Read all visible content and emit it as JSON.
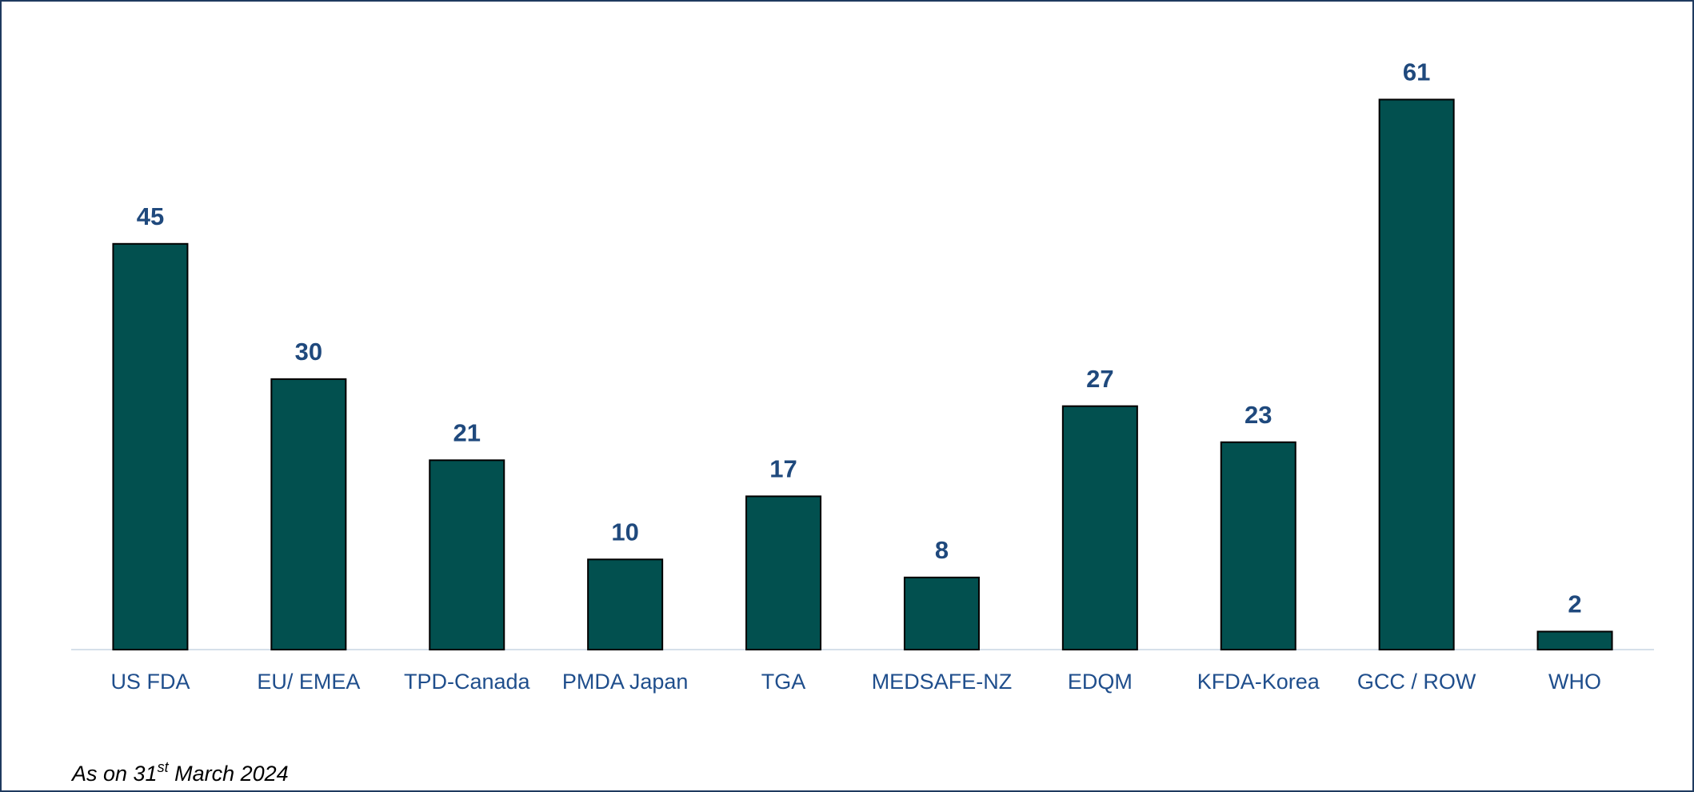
{
  "chart_data": {
    "type": "bar",
    "categories": [
      "US FDA",
      "EU/ EMEA",
      "TPD-Canada",
      "PMDA Japan",
      "TGA",
      "MEDSAFE-NZ",
      "EDQM",
      "KFDA-Korea",
      "GCC / ROW",
      "WHO"
    ],
    "values": [
      45,
      30,
      21,
      10,
      17,
      8,
      27,
      23,
      61,
      2
    ],
    "color": "#02504f",
    "ylim": [
      0,
      70
    ],
    "grid": false,
    "note": [
      "As on 31",
      "st",
      " March 2024"
    ]
  }
}
